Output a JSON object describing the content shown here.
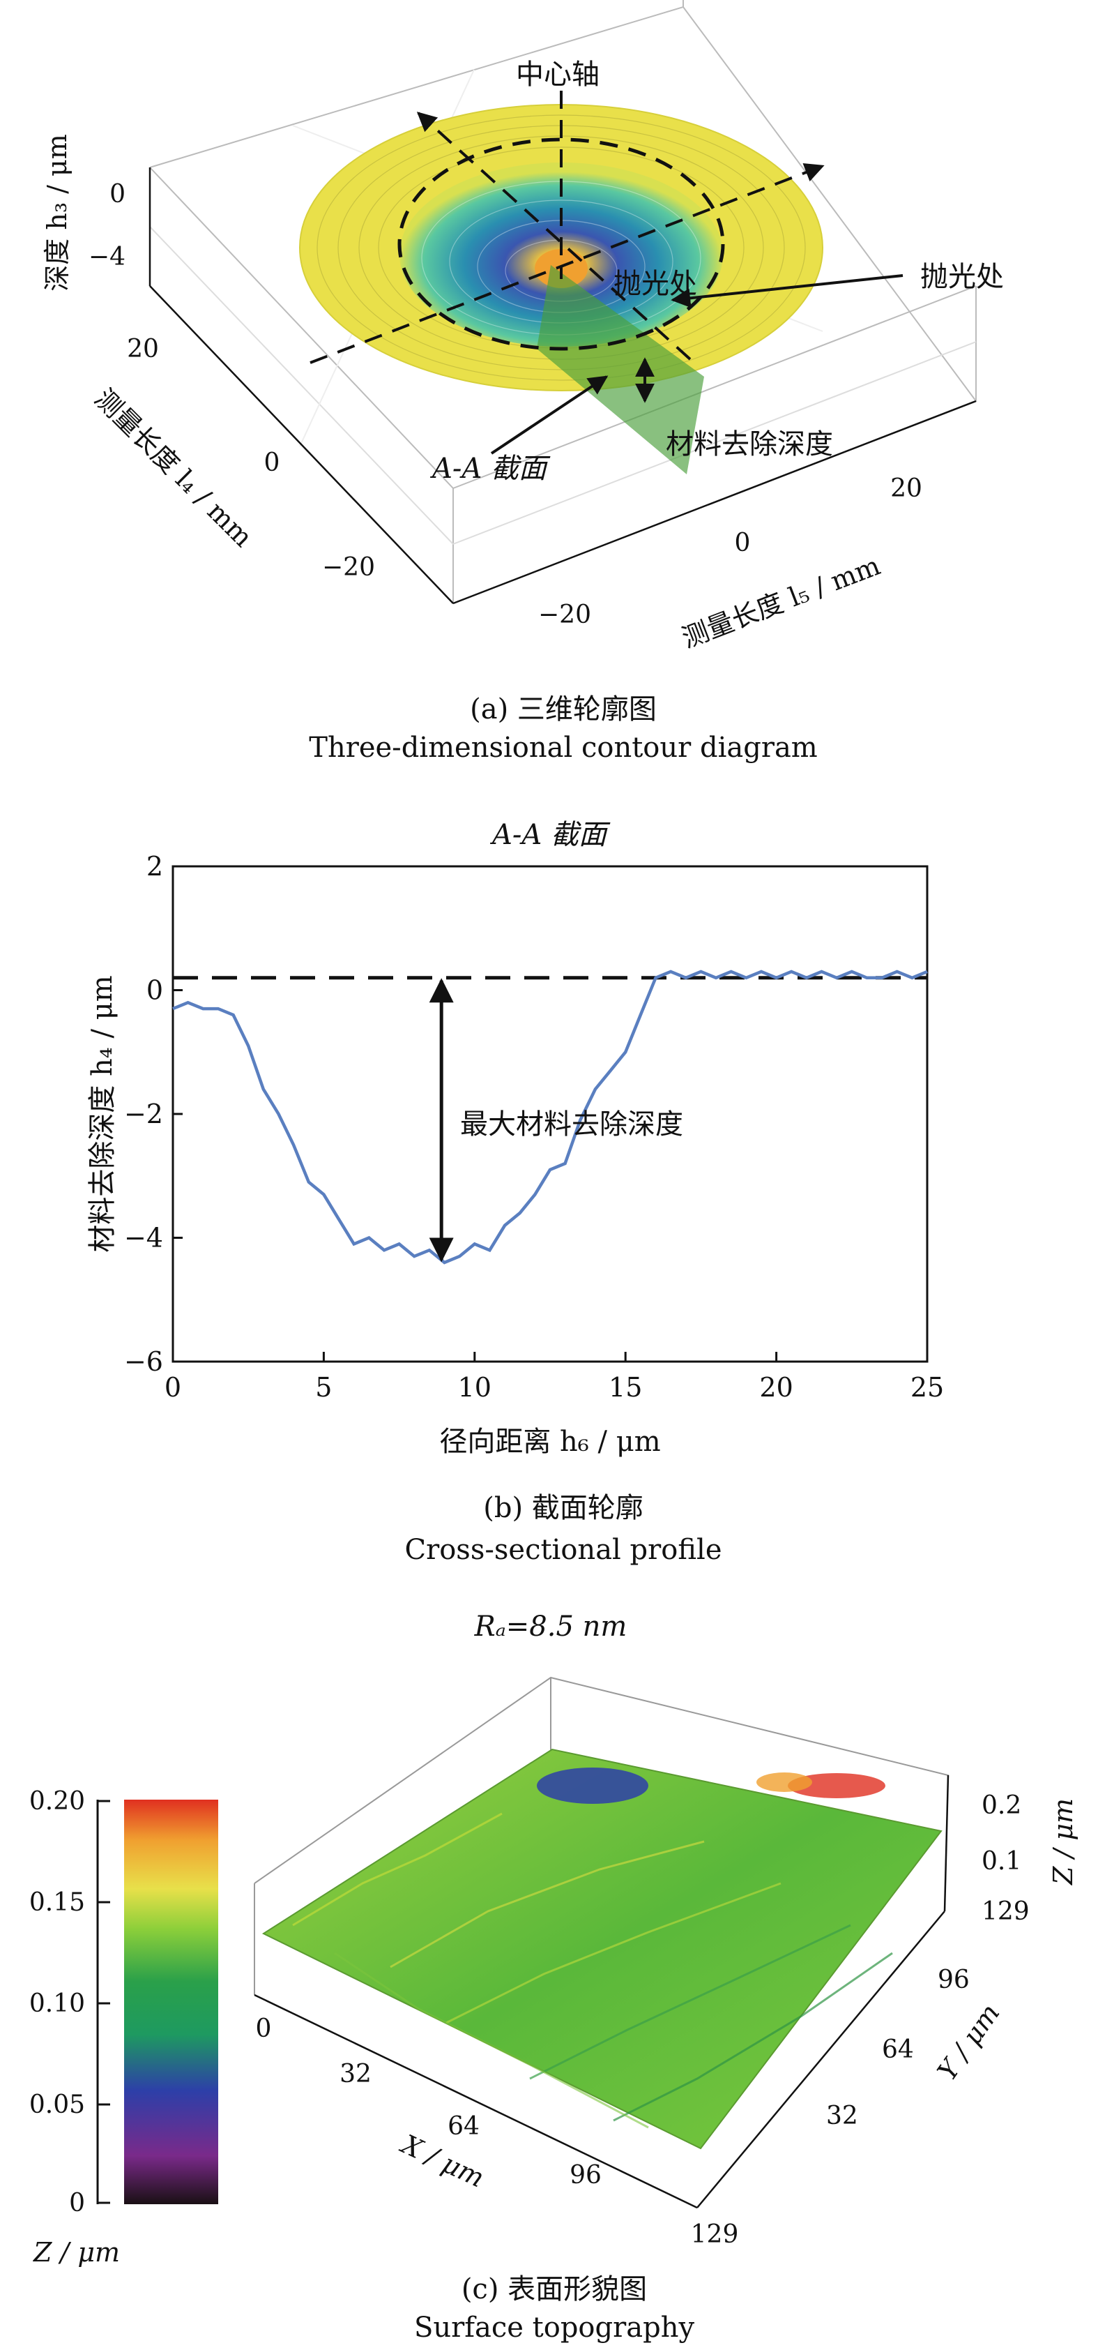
{
  "panel_a": {
    "z_label": "深度 h₃ / μm",
    "y_label": "测量长度 l₄ / mm",
    "x_label": "测量长度 l₅ / mm",
    "z_ticks": [
      "0",
      "−4"
    ],
    "y_ticks": [
      "20",
      "0",
      "−20"
    ],
    "x_ticks": [
      "20",
      "0",
      "−20"
    ],
    "annotations": {
      "center_axis": "中心轴",
      "polish_inner": "抛光处",
      "polish_outer": "抛光处",
      "section": "A-A 截面",
      "removal_depth": "材料去除深度"
    },
    "caption_cn": "(a) 三维轮廓图",
    "caption_en": "Three-dimensional contour diagram"
  },
  "panel_b": {
    "caption_cn": "(b) 截面轮廓",
    "caption_en": "Cross-sectional profile"
  },
  "panel_c": {
    "title": "Rₐ=8.5 nm",
    "colorbar_ticks": [
      "0.20",
      "0.15",
      "0.10",
      "0.05",
      "0"
    ],
    "colorbar_label": "Z / μm",
    "x_label": "X / μm",
    "y_label": "Y / μm",
    "z_label": "Z / μm",
    "x_ticks": [
      "0",
      "32",
      "64",
      "96",
      "129"
    ],
    "y_ticks": [
      "32",
      "64",
      "96",
      "129"
    ],
    "z_ticks": [
      "0.2",
      "0.1"
    ],
    "caption_cn": "(c) 表面形貌图",
    "caption_en": "Surface topography"
  },
  "colors": {
    "profile_line": "#5a7fc0",
    "outer_ring": "#e9e04a",
    "colormap": [
      "#1a1014",
      "#7a2a8a",
      "#2d3fa8",
      "#2aa04a",
      "#8ccf3a",
      "#e8e04a",
      "#f0a030",
      "#e03020"
    ]
  },
  "chart_data": {
    "type": "line",
    "title": "A-A 截面",
    "xlabel": "径向距离 h₆ / μm",
    "ylabel": "材料去除深度 h₄ / μm",
    "xlim": [
      0,
      25
    ],
    "ylim": [
      -6,
      2
    ],
    "x_ticks": [
      0,
      5,
      10,
      15,
      20,
      25
    ],
    "y_ticks": [
      2,
      0,
      -2,
      -4,
      -6
    ],
    "reference_line_y": 0.2,
    "annotation": "最大材料去除深度",
    "max_depth_x": 8.9,
    "series": [
      {
        "x": [
          0,
          0.5,
          1,
          1.5,
          2,
          2.5,
          3,
          3.5,
          4,
          4.5,
          5,
          5.5,
          6,
          6.5,
          7,
          7.5,
          8,
          8.5,
          9,
          9.5,
          10,
          10.5,
          11,
          11.5,
          12,
          12.5,
          13,
          13.5,
          14,
          14.5,
          15,
          15.5,
          16,
          16.5,
          17,
          17.5,
          18,
          18.5,
          19,
          19.5,
          20,
          20.5,
          21,
          21.5,
          22,
          22.5,
          23,
          23.5,
          24,
          24.5,
          25
        ],
        "values": [
          -0.3,
          -0.2,
          -0.3,
          -0.3,
          -0.4,
          -0.9,
          -1.6,
          -2.0,
          -2.5,
          -3.1,
          -3.3,
          -3.7,
          -4.1,
          -4.0,
          -4.2,
          -4.1,
          -4.3,
          -4.2,
          -4.4,
          -4.3,
          -4.1,
          -4.2,
          -3.8,
          -3.6,
          -3.3,
          -2.9,
          -2.8,
          -2.1,
          -1.6,
          -1.3,
          -1.0,
          -0.4,
          0.2,
          0.3,
          0.2,
          0.3,
          0.2,
          0.3,
          0.2,
          0.3,
          0.2,
          0.3,
          0.2,
          0.3,
          0.2,
          0.3,
          0.2,
          0.2,
          0.3,
          0.2,
          0.3
        ]
      }
    ]
  }
}
